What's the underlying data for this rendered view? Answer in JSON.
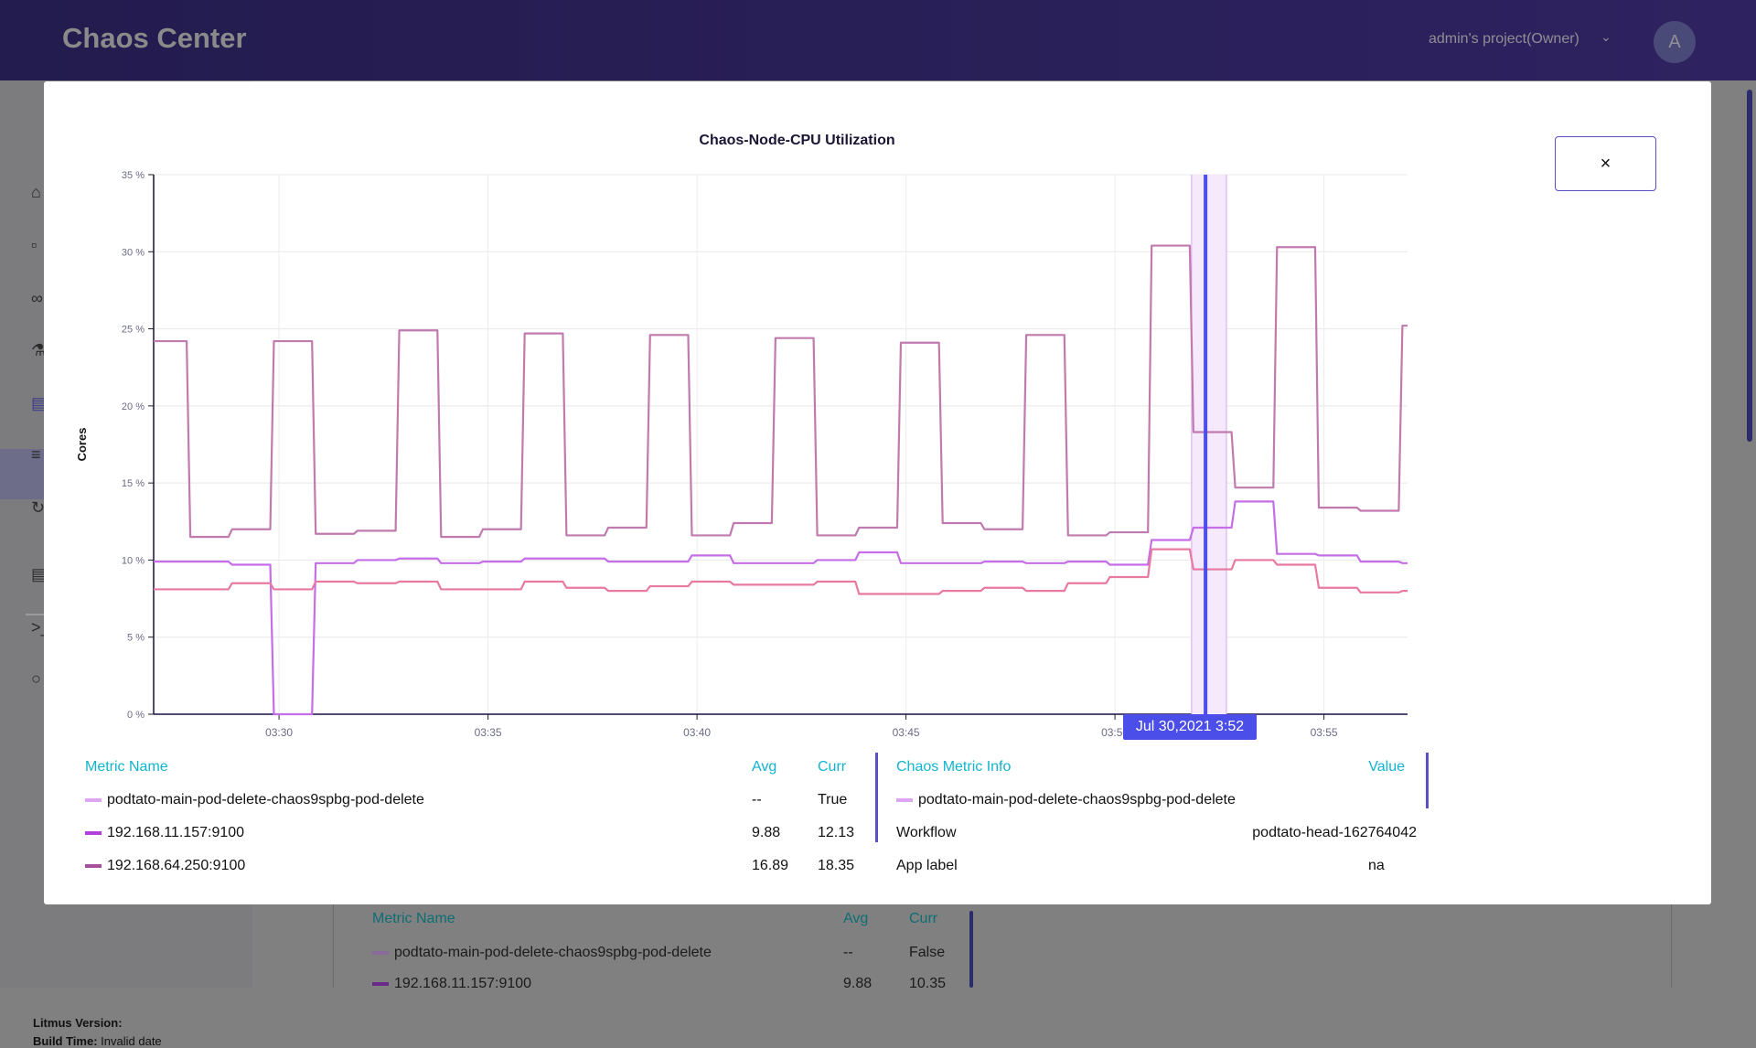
{
  "header": {
    "brand": "Chaos Center",
    "project": "admin's project(Owner)",
    "avatar": "A"
  },
  "sidebar": {
    "icons": [
      "home-icon",
      "workflows-icon",
      "link-icon",
      "flask-icon",
      "analytics-icon",
      "settings-sliders-icon",
      "refresh-icon",
      "document-icon",
      "terminal-icon",
      "chat-icon"
    ],
    "active": "analytics-icon"
  },
  "footer": {
    "version_label": "Litmus Version:",
    "version_value": "",
    "build_label": "Build Time:",
    "build_value": "Invalid date"
  },
  "background_table": {
    "headers": [
      "Metric Name",
      "Avg",
      "Curr"
    ],
    "rows": [
      {
        "name": "podtato-main-pod-delete-chaos9spbg-pod-delete",
        "avg": "--",
        "curr": "False",
        "color": "#8a6a9a"
      },
      {
        "name": "192.168.11.157:9100",
        "avg": "9.88",
        "curr": "10.35",
        "color": "#6a2a8a"
      }
    ]
  },
  "modal": {
    "close_label": "×",
    "tooltip": "Jul 30,2021 3:52",
    "metrics": {
      "headers": [
        "Metric Name",
        "Avg",
        "Curr"
      ],
      "rows": [
        {
          "name": "podtato-main-pod-delete-chaos9spbg-pod-delete",
          "avg": "--",
          "curr": "True",
          "color": "#dca6f0"
        },
        {
          "name": "192.168.11.157:9100",
          "avg": "9.88",
          "curr": "12.13",
          "color": "#b13fe0"
        },
        {
          "name": "192.168.64.250:9100",
          "avg": "16.89",
          "curr": "18.35",
          "color": "#a8509a"
        }
      ]
    },
    "chaos_info": {
      "headers": [
        "Chaos Metric Info",
        "Value"
      ],
      "event": {
        "name": "podtato-main-pod-delete-chaos9spbg-pod-delete",
        "color": "#dca6f0"
      },
      "rows": [
        {
          "label": "Workflow",
          "value": "podtato-head-162764042"
        },
        {
          "label": "App label",
          "value": "na"
        }
      ]
    }
  },
  "chart_data": {
    "type": "line",
    "title": "Chaos-Node-CPU Utilization",
    "ylabel": "Cores",
    "xlabel": "",
    "ylim": [
      0,
      35
    ],
    "yticks": [
      "0 %",
      "5 %",
      "10 %",
      "15 %",
      "20 %",
      "25 %",
      "30 %",
      "35 %"
    ],
    "xlim": [
      "03:27:00",
      "03:57:00"
    ],
    "xticks": [
      "03:30",
      "03:35",
      "03:40",
      "03:45",
      "03:50",
      "03:55"
    ],
    "grid": true,
    "step": true,
    "x": [
      "03:27:00",
      "03:27:50",
      "03:28:50",
      "03:29:50",
      "03:30:50",
      "03:31:50",
      "03:32:50",
      "03:33:50",
      "03:34:50",
      "03:35:50",
      "03:36:50",
      "03:37:50",
      "03:38:50",
      "03:39:50",
      "03:40:50",
      "03:41:50",
      "03:42:50",
      "03:43:50",
      "03:44:50",
      "03:45:50",
      "03:46:50",
      "03:47:50",
      "03:48:50",
      "03:49:50",
      "03:50:50",
      "03:51:50",
      "03:52:50",
      "03:53:50",
      "03:54:50",
      "03:55:50",
      "03:56:50"
    ],
    "x_end": "03:57:00",
    "chaos_window": [
      "03:51:50",
      "03:52:40"
    ],
    "cursor": "03:52:10",
    "series": [
      {
        "name": "192.168.64.250:9100",
        "color": "#c07aae",
        "values": [
          24.2,
          11.5,
          12.0,
          24.2,
          11.7,
          11.9,
          24.9,
          11.5,
          12.0,
          24.7,
          11.6,
          12.1,
          24.6,
          11.6,
          12.4,
          24.4,
          11.6,
          12.1,
          24.1,
          12.4,
          12.0,
          24.6,
          11.6,
          11.8,
          30.4,
          18.3,
          14.7,
          30.3,
          13.4,
          13.2,
          25.2
        ]
      },
      {
        "name": "192.168.11.157:9100",
        "color": "#c56ee8",
        "values": [
          9.9,
          9.9,
          9.7,
          0,
          9.8,
          10.0,
          10.1,
          9.8,
          9.9,
          10.1,
          10.1,
          9.9,
          9.9,
          10.3,
          9.8,
          9.8,
          10.0,
          10.5,
          9.8,
          9.8,
          9.9,
          9.8,
          9.9,
          9.7,
          11.3,
          12.1,
          13.8,
          10.4,
          10.3,
          9.9,
          9.8
        ]
      },
      {
        "color": "#e879a0",
        "values": [
          8.1,
          8.1,
          8.5,
          8.1,
          8.6,
          8.5,
          8.6,
          8.1,
          8.1,
          8.6,
          8.2,
          8.0,
          8.3,
          8.6,
          8.4,
          8.4,
          8.6,
          7.8,
          7.8,
          8.0,
          8.2,
          8.0,
          8.5,
          8.9,
          10.7,
          9.4,
          10.0,
          9.7,
          8.2,
          7.9,
          8.0
        ]
      }
    ]
  }
}
